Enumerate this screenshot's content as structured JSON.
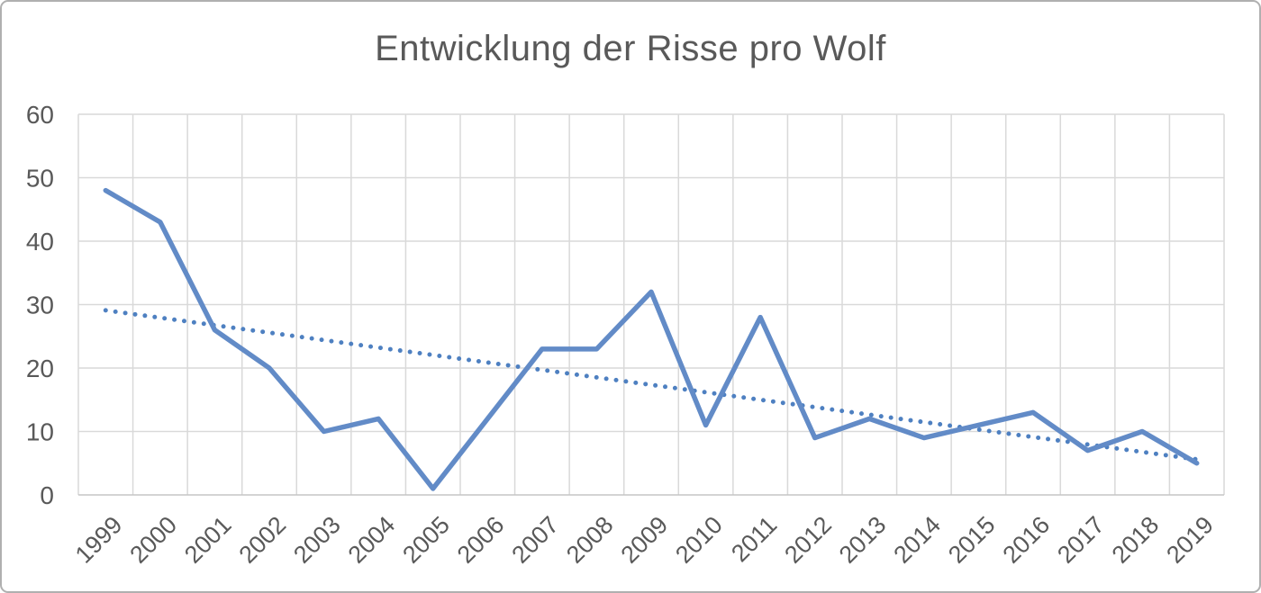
{
  "chart_data": {
    "type": "line",
    "title": "Entwicklung der Risse pro Wolf",
    "categories": [
      "1999",
      "2000",
      "2001",
      "2002",
      "2003",
      "2004",
      "2005",
      "2006",
      "2007",
      "2008",
      "2009",
      "2010",
      "2011",
      "2012",
      "2013",
      "2014",
      "2015",
      "2016",
      "2017",
      "2018",
      "2019"
    ],
    "series": [
      {
        "name": "Risse pro Wolf",
        "values": [
          48,
          43,
          26,
          20,
          10,
          12,
          1,
          12,
          23,
          23,
          32,
          11,
          28,
          9,
          12,
          9,
          11,
          13,
          7,
          10,
          5
        ]
      }
    ],
    "trendline": {
      "type": "linear",
      "style": "dotted",
      "start_value": 29.1,
      "end_value": 5.6
    },
    "xlabel": "",
    "ylabel": "",
    "ylim": [
      0,
      60
    ],
    "yticks": [
      0,
      10,
      20,
      30,
      40,
      50,
      60
    ],
    "grid": true,
    "legend_position": "none",
    "colors": {
      "line": "#628bc7",
      "trend": "#4e80c1",
      "grid": "#d9d9d9",
      "axis_line": "#c6c6c6",
      "axis_text": "#595959",
      "title_text": "#595959",
      "border": "#b0b0b0",
      "background": "#ffffff"
    }
  }
}
